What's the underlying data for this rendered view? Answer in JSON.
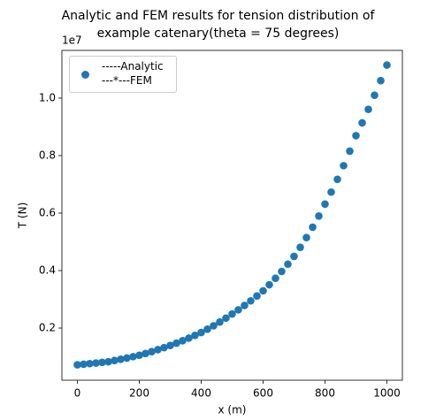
{
  "chart_data": {
    "type": "scatter",
    "title": "Analytic and FEM results for tension distribution of\nexample catenary(theta = 75 degrees)",
    "xlabel": "x (m)",
    "ylabel": "T (N)",
    "y_offset_label": "1e7",
    "xlim": [
      -50,
      1050
    ],
    "xticks": [
      0,
      200,
      400,
      600,
      800,
      1000
    ],
    "ylim": [
      185000,
      11660000
    ],
    "yticks": [
      {
        "value": 2000000,
        "label": "0.2"
      },
      {
        "value": 4000000,
        "label": "0.4"
      },
      {
        "value": 6000000,
        "label": "0.6"
      },
      {
        "value": 8000000,
        "label": "0.8"
      },
      {
        "value": 10000000,
        "label": "1.0"
      }
    ],
    "grid": false,
    "legend": "upper left",
    "x": [
      0,
      20,
      40,
      60,
      80,
      100,
      120,
      140,
      160,
      180,
      200,
      220,
      240,
      260,
      280,
      300,
      320,
      340,
      360,
      380,
      400,
      420,
      440,
      460,
      480,
      500,
      520,
      540,
      560,
      580,
      600,
      620,
      640,
      660,
      680,
      700,
      720,
      740,
      760,
      780,
      800,
      820,
      840,
      860,
      880,
      900,
      920,
      940,
      960,
      980,
      1000
    ],
    "series": [
      {
        "name": "-----Analytic\n---*---FEM",
        "color": "#1f77b4",
        "values": [
          721000,
          741000,
          762000,
          784000,
          806000,
          829000,
          870000,
          913000,
          957000,
          1004000,
          1054000,
          1114000,
          1179000,
          1247000,
          1319000,
          1395000,
          1475000,
          1560000,
          1650000,
          1745000,
          1845000,
          1959000,
          2080000,
          2209000,
          2346000,
          2491000,
          2634000,
          2786000,
          2946000,
          3116000,
          3296000,
          3507000,
          3731000,
          3969000,
          4223000,
          4493000,
          4810000,
          5148000,
          5510000,
          5898000,
          6313000,
          6730000,
          7175000,
          7649000,
          8155000,
          8694000,
          9139000,
          9608000,
          10101000,
          10608000,
          11150000
        ]
      }
    ]
  }
}
